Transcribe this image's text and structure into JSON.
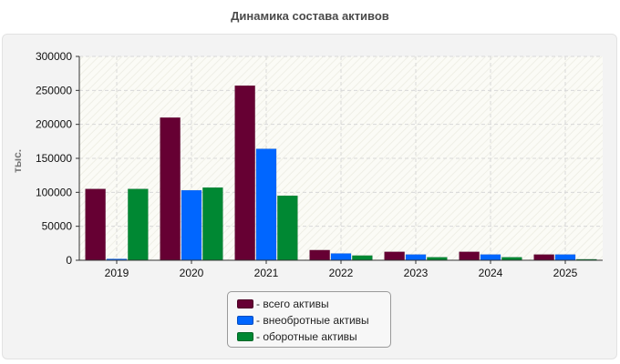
{
  "chart_data": {
    "type": "bar",
    "title": "Динамика состава активов",
    "ylabel": "тыс.",
    "categories": [
      "2019",
      "2020",
      "2021",
      "2022",
      "2023",
      "2024",
      "2025"
    ],
    "ylim": [
      0,
      300000
    ],
    "yticks": [
      "0",
      "50000",
      "100000",
      "150000",
      "200000",
      "250000",
      "300000"
    ],
    "grid": true,
    "legend_position": "bottom",
    "series": [
      {
        "name": "- всего активы",
        "color": "#660033",
        "values": [
          105000,
          210000,
          257000,
          15000,
          12500,
          12500,
          8500
        ]
      },
      {
        "name": "- внеобротные активы",
        "color": "#0066ff",
        "values": [
          2000,
          103000,
          164000,
          10000,
          8500,
          8500,
          8500
        ]
      },
      {
        "name": "- оборотные активы",
        "color": "#008833",
        "values": [
          105000,
          107000,
          95000,
          7000,
          4500,
          4500,
          1500
        ]
      }
    ]
  }
}
